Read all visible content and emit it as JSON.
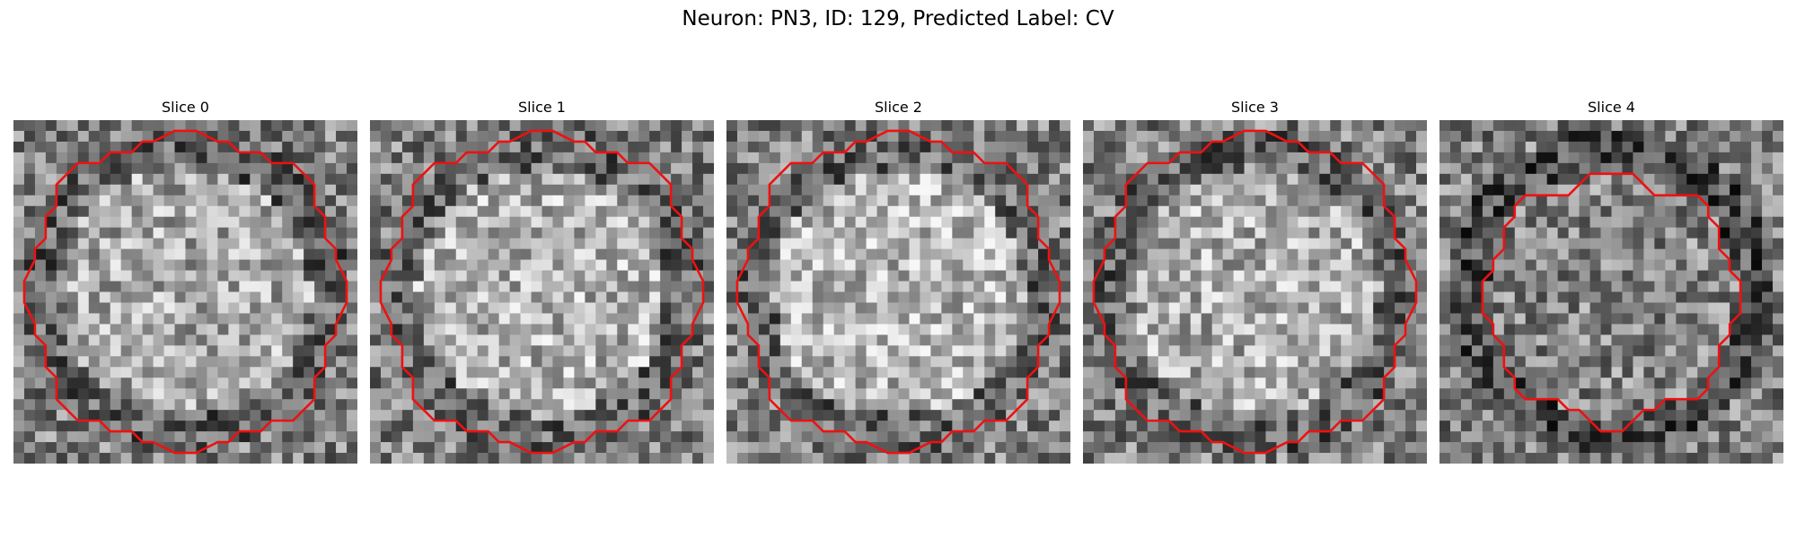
{
  "figure": {
    "title": "Neuron: PN3, ID: 129, Predicted Label: CV"
  },
  "panels": [
    {
      "title": "Slice 0",
      "seed": 11,
      "center_tone": 0.66,
      "ring_tone": 0.38,
      "contour_open_top": [
        0.59,
        0.62
      ]
    },
    {
      "title": "Slice 1",
      "seed": 23,
      "center_tone": 0.7,
      "ring_tone": 0.4,
      "contour_open_top": [
        0.19,
        0.65
      ]
    },
    {
      "title": "Slice 2",
      "seed": 37,
      "center_tone": 0.72,
      "ring_tone": 0.4,
      "contour_open_top": [
        0.39,
        0.67
      ]
    },
    {
      "title": "Slice 3",
      "seed": 41,
      "center_tone": 0.68,
      "ring_tone": 0.38,
      "contour_open_top": [
        0.42,
        0.71
      ]
    },
    {
      "title": "Slice 4",
      "seed": 53,
      "center_tone": 0.52,
      "ring_tone": 0.3,
      "contour_open_top": null
    }
  ],
  "colors": {
    "contour": "#ee1111"
  }
}
